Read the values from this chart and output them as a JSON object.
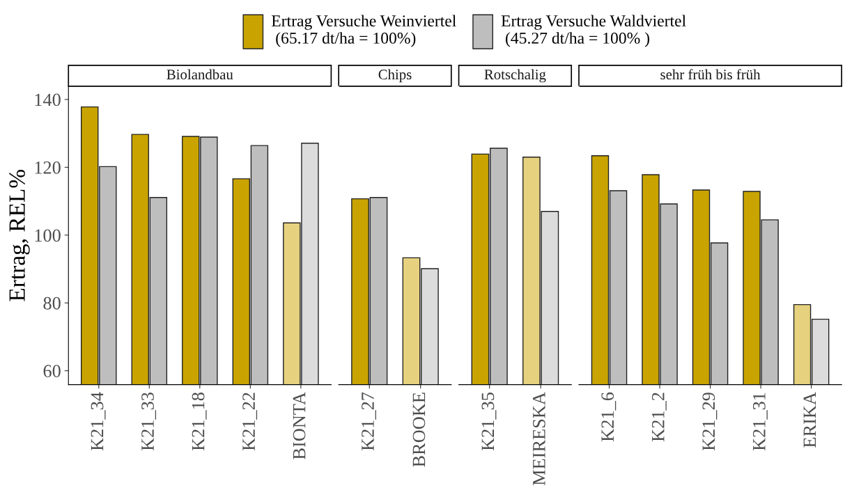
{
  "chart_data": [
    {
      "type": "bar",
      "title": "Biolandbau",
      "ylabel": "Ertrag, REL%",
      "categories": [
        "K21_34",
        "K21_33",
        "K21_18",
        "K21_22",
        "BIONTA"
      ],
      "ylim": [
        55.9,
        143.9
      ],
      "yticks": [
        60,
        80,
        100,
        120,
        140
      ],
      "grid": false,
      "legend": "top",
      "series": [
        {
          "name": "Ertrag Versuche Weinviertel\n (65.17 dt/ha = 100%)",
          "color": "#c9a400",
          "colors": [
            "#c9a400",
            "#c9a400",
            "#c9a400",
            "#c9a400",
            "#e6d17f"
          ],
          "values": [
            137.8,
            129.7,
            129.1,
            116.6,
            103.6
          ]
        },
        {
          "name": "Ertrag Versuche Waldviertel\n (45.27 dt/ha = 100% )",
          "color": "#bebebe",
          "colors": [
            "#bebebe",
            "#bebebe",
            "#bebebe",
            "#bebebe",
            "#dcdcdc"
          ],
          "values": [
            120.2,
            111.1,
            128.9,
            126.4,
            127.1
          ]
        }
      ]
    },
    {
      "type": "bar",
      "title": "Chips",
      "categories": [
        "K21_27",
        "BROOKE"
      ],
      "ylim": [
        55.9,
        143.9
      ],
      "yticks": [
        60,
        80,
        100,
        120,
        140
      ],
      "tick_labels": "x",
      "grid": false,
      "series": [
        {
          "colors": [
            "#c9a400",
            "#e6d17f"
          ],
          "values": [
            110.7,
            93.3
          ]
        },
        {
          "colors": [
            "#bebebe",
            "#dcdcdc"
          ],
          "values": [
            111.1,
            90.1
          ]
        }
      ]
    },
    {
      "type": "bar",
      "title": "Rotschalig",
      "categories": [
        "K21_35",
        "MEIRESKA"
      ],
      "ylim": [
        55.9,
        143.9
      ],
      "yticks": [
        60,
        80,
        100,
        120,
        140
      ],
      "tick_labels": "x",
      "grid": false,
      "series": [
        {
          "colors": [
            "#c9a400",
            "#e6d17f"
          ],
          "values": [
            123.9,
            123.0
          ]
        },
        {
          "colors": [
            "#bebebe",
            "#dcdcdc"
          ],
          "values": [
            125.6,
            107.0
          ]
        }
      ]
    },
    {
      "type": "bar",
      "title": "sehr früh bis früh",
      "categories": [
        "K21_6",
        "K21_2",
        "K21_29",
        "K21_31",
        "ERIKA"
      ],
      "ylim": [
        55.9,
        143.9
      ],
      "yticks": [
        60,
        80,
        100,
        120,
        140
      ],
      "tick_labels": "x",
      "grid": false,
      "series": [
        {
          "colors": [
            "#c9a400",
            "#c9a400",
            "#c9a400",
            "#c9a400",
            "#e6d17f"
          ],
          "values": [
            123.4,
            117.8,
            113.3,
            112.9,
            79.5
          ]
        },
        {
          "colors": [
            "#bebebe",
            "#bebebe",
            "#bebebe",
            "#bebebe",
            "#dcdcdc"
          ],
          "values": [
            113.1,
            109.2,
            97.7,
            104.5,
            75.2
          ]
        }
      ]
    }
  ]
}
